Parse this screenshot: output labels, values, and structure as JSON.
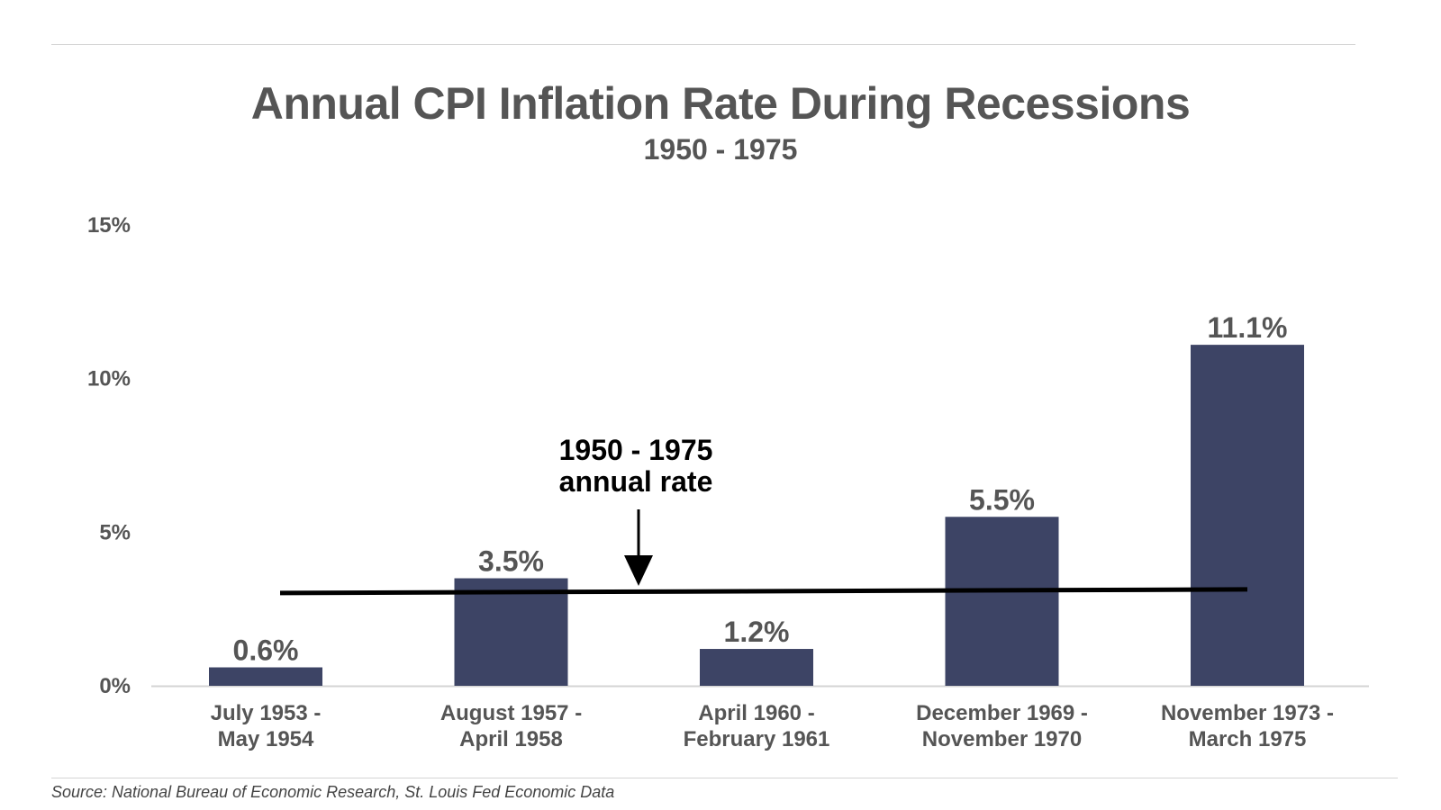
{
  "chart_data": {
    "type": "bar",
    "title": "Annual CPI Inflation Rate During Recessions",
    "subtitle": "1950 - 1975",
    "categories": [
      [
        "July 1953 -",
        "May 1954"
      ],
      [
        "August 1957 -",
        "April 1958"
      ],
      [
        "April 1960 -",
        "February 1961"
      ],
      [
        "December 1969 -",
        "November 1970"
      ],
      [
        "November 1973 -",
        "March 1975"
      ]
    ],
    "values": [
      0.6,
      3.5,
      1.2,
      5.5,
      11.1
    ],
    "value_labels": [
      "0.6%",
      "3.5%",
      "1.2%",
      "5.5%",
      "11.1%"
    ],
    "ylim": [
      0,
      15
    ],
    "yticks": [
      0,
      5,
      10,
      15
    ],
    "ytick_labels": [
      "0%",
      "5%",
      "10%",
      "15%"
    ],
    "xlabel": "",
    "ylabel": "",
    "grid": false,
    "legend": "none",
    "reference_line": {
      "value": 3.05,
      "label_lines": [
        "1950 - 1975",
        "annual rate"
      ]
    },
    "colors": {
      "bar": "#3d4465",
      "text": "#555555",
      "reference": "#000000",
      "axis": "#d4d4d4"
    }
  },
  "source": "Source: National Bureau of Economic Research, St. Louis Fed Economic Data"
}
